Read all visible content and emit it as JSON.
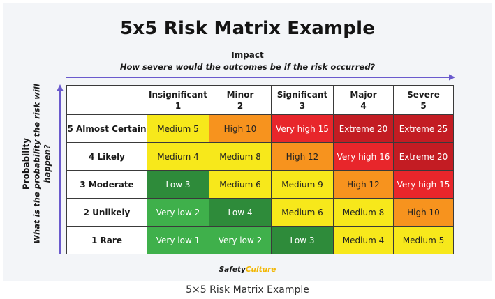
{
  "title": "5x5 Risk Matrix Example",
  "impact": {
    "label": "Impact",
    "question": "How severe would the outcomes be if the risk occurred?"
  },
  "probability": {
    "label": "Probability",
    "question": "What is the probability the risk will happen?"
  },
  "columns": [
    {
      "name": "Insignificant",
      "num": "1"
    },
    {
      "name": "Minor",
      "num": "2"
    },
    {
      "name": "Significant",
      "num": "3"
    },
    {
      "name": "Major",
      "num": "4"
    },
    {
      "name": "Severe",
      "num": "5"
    }
  ],
  "rows": [
    {
      "label": "5 Almost Certain",
      "cells": [
        {
          "text": "Medium 5",
          "level": "medium"
        },
        {
          "text": "High 10",
          "level": "high"
        },
        {
          "text": "Very high 15",
          "level": "very-high"
        },
        {
          "text": "Extreme 20",
          "level": "extreme"
        },
        {
          "text": "Extreme 25",
          "level": "extreme"
        }
      ]
    },
    {
      "label": "4 Likely",
      "cells": [
        {
          "text": "Medium 4",
          "level": "medium"
        },
        {
          "text": "Medium 8",
          "level": "medium"
        },
        {
          "text": "High 12",
          "level": "high"
        },
        {
          "text": "Very high 16",
          "level": "very-high"
        },
        {
          "text": "Extreme 20",
          "level": "extreme"
        }
      ]
    },
    {
      "label": "3 Moderate",
      "cells": [
        {
          "text": "Low 3",
          "level": "low"
        },
        {
          "text": "Medium 6",
          "level": "medium"
        },
        {
          "text": "Medium 9",
          "level": "medium"
        },
        {
          "text": "High 12",
          "level": "high"
        },
        {
          "text": "Very high 15",
          "level": "very-high"
        }
      ]
    },
    {
      "label": "2 Unlikely",
      "cells": [
        {
          "text": "Very low 2",
          "level": "very-low"
        },
        {
          "text": "Low 4",
          "level": "low"
        },
        {
          "text": "Medium 6",
          "level": "medium"
        },
        {
          "text": "Medium 8",
          "level": "medium"
        },
        {
          "text": "High 10",
          "level": "high"
        }
      ]
    },
    {
      "label": "1 Rare",
      "cells": [
        {
          "text": "Very low 1",
          "level": "very-low"
        },
        {
          "text": "Very low 2",
          "level": "very-low"
        },
        {
          "text": "Low 3",
          "level": "low"
        },
        {
          "text": "Medium 4",
          "level": "medium"
        },
        {
          "text": "Medium 5",
          "level": "medium"
        }
      ]
    }
  ],
  "level_colors": {
    "very-low": "#3fb04b",
    "low": "#2e8b3a",
    "medium": "#f7e81b",
    "high": "#f7931e",
    "very-high": "#e8262b",
    "extreme": "#c31c23"
  },
  "arrow_color": "#6a5acd",
  "logo": {
    "part1": "Safety",
    "part2": "Culture"
  },
  "caption": "5×5 Risk Matrix Example"
}
